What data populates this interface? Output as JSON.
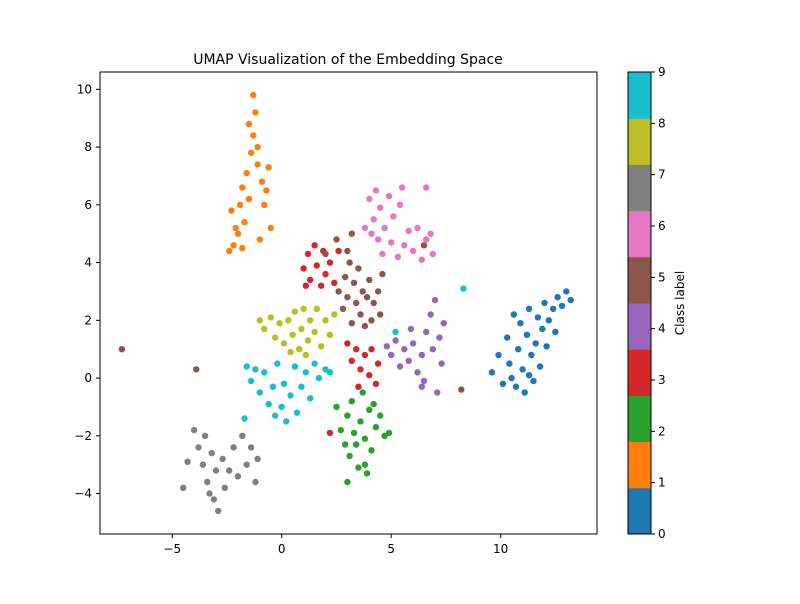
{
  "chart_data": {
    "type": "scatter",
    "title": "UMAP Visualization of the Embedding Space",
    "xlabel": "",
    "ylabel": "",
    "xlim": [
      -8.3,
      14.4
    ],
    "ylim": [
      -5.4,
      10.6
    ],
    "xticks": [
      -5,
      0,
      5,
      10
    ],
    "yticks": [
      -4,
      -2,
      0,
      2,
      4,
      6,
      8,
      10
    ],
    "grid": false,
    "colorbar": {
      "label": "Class label",
      "ticks": [
        0,
        1,
        2,
        3,
        4,
        5,
        6,
        7,
        8,
        9
      ],
      "colors": [
        "#1f77b4",
        "#ff7f0e",
        "#2ca02c",
        "#d62728",
        "#9467bd",
        "#8c564b",
        "#e377c2",
        "#7f7f7f",
        "#bcbd22",
        "#17becf"
      ]
    },
    "series": [
      {
        "label": 0,
        "points": [
          [
            9.6,
            0.2
          ],
          [
            9.9,
            0.8
          ],
          [
            10.1,
            -0.2
          ],
          [
            10.3,
            1.4
          ],
          [
            10.4,
            0.5
          ],
          [
            10.6,
            2.2
          ],
          [
            10.7,
            -0.3
          ],
          [
            10.8,
            1.0
          ],
          [
            10.9,
            1.9
          ],
          [
            11.0,
            0.3
          ],
          [
            11.1,
            -0.5
          ],
          [
            11.2,
            1.5
          ],
          [
            11.3,
            2.4
          ],
          [
            11.4,
            0.8
          ],
          [
            11.5,
            -0.1
          ],
          [
            11.6,
            1.2
          ],
          [
            11.7,
            2.1
          ],
          [
            11.8,
            0.4
          ],
          [
            11.9,
            1.7
          ],
          [
            12.0,
            2.6
          ],
          [
            12.1,
            1.1
          ],
          [
            12.2,
            2.0
          ],
          [
            12.4,
            2.4
          ],
          [
            12.5,
            1.6
          ],
          [
            12.6,
            2.8
          ],
          [
            12.8,
            2.5
          ],
          [
            13.0,
            3.0
          ],
          [
            13.2,
            2.7
          ],
          [
            10.5,
            0.0
          ],
          [
            11.3,
            0.1
          ]
        ]
      },
      {
        "label": 1,
        "points": [
          [
            -2.4,
            4.4
          ],
          [
            -2.2,
            4.6
          ],
          [
            -2.1,
            5.2
          ],
          [
            -2.3,
            5.8
          ],
          [
            -1.9,
            6.0
          ],
          [
            -2.0,
            5.0
          ],
          [
            -1.8,
            6.6
          ],
          [
            -1.7,
            5.4
          ],
          [
            -1.6,
            7.1
          ],
          [
            -1.5,
            6.2
          ],
          [
            -1.4,
            7.8
          ],
          [
            -1.3,
            8.4
          ],
          [
            -1.2,
            9.2
          ],
          [
            -1.3,
            9.8
          ],
          [
            -1.5,
            8.8
          ],
          [
            -1.1,
            7.4
          ],
          [
            -0.9,
            6.8
          ],
          [
            -0.8,
            6.0
          ],
          [
            -0.6,
            7.3
          ],
          [
            -0.5,
            5.2
          ],
          [
            -1.0,
            4.8
          ],
          [
            -1.8,
            4.5
          ],
          [
            -1.1,
            8.0
          ],
          [
            -0.7,
            6.5
          ]
        ]
      },
      {
        "label": 2,
        "points": [
          [
            2.5,
            -1.0
          ],
          [
            2.7,
            -1.8
          ],
          [
            2.9,
            -2.3
          ],
          [
            3.0,
            -1.3
          ],
          [
            3.1,
            -2.7
          ],
          [
            3.2,
            -0.8
          ],
          [
            3.3,
            -1.9
          ],
          [
            3.4,
            -2.3
          ],
          [
            3.5,
            -3.1
          ],
          [
            3.6,
            -1.5
          ],
          [
            3.7,
            -0.5
          ],
          [
            3.8,
            -2.1
          ],
          [
            3.9,
            -3.3
          ],
          [
            4.0,
            -1.1
          ],
          [
            4.1,
            -2.5
          ],
          [
            4.2,
            -0.9
          ],
          [
            4.3,
            -1.7
          ],
          [
            4.5,
            -1.3
          ],
          [
            4.7,
            -2.0
          ],
          [
            4.9,
            -1.9
          ],
          [
            3.0,
            -3.6
          ],
          [
            3.8,
            -3.0
          ]
        ]
      },
      {
        "label": 3,
        "points": [
          [
            1.0,
            3.8
          ],
          [
            1.2,
            4.3
          ],
          [
            1.3,
            3.4
          ],
          [
            1.5,
            4.6
          ],
          [
            1.6,
            3.9
          ],
          [
            1.8,
            3.2
          ],
          [
            1.9,
            4.4
          ],
          [
            2.0,
            3.6
          ],
          [
            2.2,
            4.0
          ],
          [
            2.4,
            3.3
          ],
          [
            2.6,
            4.4
          ],
          [
            1.1,
            3.2
          ],
          [
            3.0,
            1.2
          ],
          [
            3.2,
            0.6
          ],
          [
            3.4,
            1.0
          ],
          [
            3.6,
            0.3
          ],
          [
            3.8,
            0.8
          ],
          [
            4.0,
            0.1
          ],
          [
            4.1,
            1.0
          ],
          [
            4.3,
            -0.2
          ],
          [
            4.4,
            0.5
          ],
          [
            3.5,
            -0.3
          ],
          [
            2.2,
            -1.9
          ]
        ]
      },
      {
        "label": 4,
        "points": [
          [
            4.8,
            1.1
          ],
          [
            5.0,
            0.8
          ],
          [
            5.2,
            1.3
          ],
          [
            5.4,
            0.4
          ],
          [
            5.6,
            1.0
          ],
          [
            5.8,
            0.6
          ],
          [
            6.0,
            1.2
          ],
          [
            6.2,
            0.2
          ],
          [
            6.4,
            0.8
          ],
          [
            6.5,
            -0.1
          ],
          [
            6.6,
            1.6
          ],
          [
            6.8,
            2.2
          ],
          [
            6.9,
            1.0
          ],
          [
            7.0,
            2.7
          ],
          [
            7.2,
            1.4
          ],
          [
            7.3,
            0.5
          ],
          [
            7.1,
            -0.5
          ],
          [
            6.4,
            -0.3
          ],
          [
            7.4,
            1.9
          ],
          [
            5.9,
            1.7
          ]
        ]
      },
      {
        "label": 5,
        "points": [
          [
            2.6,
            3.0
          ],
          [
            2.8,
            2.4
          ],
          [
            2.9,
            3.5
          ],
          [
            3.0,
            2.8
          ],
          [
            3.1,
            4.0
          ],
          [
            3.2,
            1.9
          ],
          [
            3.3,
            3.3
          ],
          [
            3.4,
            2.6
          ],
          [
            3.5,
            3.8
          ],
          [
            3.6,
            2.2
          ],
          [
            3.7,
            3.0
          ],
          [
            3.8,
            1.8
          ],
          [
            3.9,
            2.8
          ],
          [
            4.0,
            3.4
          ],
          [
            4.1,
            2.0
          ],
          [
            4.2,
            2.6
          ],
          [
            4.4,
            3.0
          ],
          [
            4.5,
            2.2
          ],
          [
            4.6,
            3.6
          ],
          [
            3.0,
            4.4
          ],
          [
            2.5,
            4.8
          ],
          [
            2.0,
            4.3
          ],
          [
            3.2,
            5.0
          ],
          [
            6.5,
            4.6
          ],
          [
            8.2,
            -0.4
          ],
          [
            -7.3,
            1.0
          ],
          [
            -3.9,
            0.3
          ]
        ]
      },
      {
        "label": 6,
        "points": [
          [
            4.0,
            6.2
          ],
          [
            4.2,
            5.5
          ],
          [
            4.3,
            6.5
          ],
          [
            4.4,
            4.8
          ],
          [
            4.5,
            5.9
          ],
          [
            4.6,
            4.3
          ],
          [
            4.7,
            5.2
          ],
          [
            4.9,
            6.3
          ],
          [
            5.0,
            4.7
          ],
          [
            5.1,
            5.6
          ],
          [
            5.3,
            4.2
          ],
          [
            5.4,
            6.0
          ],
          [
            5.6,
            4.6
          ],
          [
            5.8,
            5.1
          ],
          [
            6.0,
            4.4
          ],
          [
            6.2,
            5.2
          ],
          [
            6.4,
            4.1
          ],
          [
            6.6,
            4.8
          ],
          [
            6.8,
            5.0
          ],
          [
            6.9,
            4.3
          ],
          [
            4.1,
            5.0
          ],
          [
            5.5,
            6.6
          ],
          [
            6.6,
            6.6
          ],
          [
            3.8,
            5.2
          ]
        ]
      },
      {
        "label": 7,
        "points": [
          [
            -4.0,
            -1.8
          ],
          [
            -3.8,
            -2.4
          ],
          [
            -3.6,
            -3.0
          ],
          [
            -3.5,
            -2.0
          ],
          [
            -3.4,
            -3.6
          ],
          [
            -3.2,
            -2.6
          ],
          [
            -3.1,
            -4.2
          ],
          [
            -3.0,
            -3.2
          ],
          [
            -2.9,
            -4.6
          ],
          [
            -2.7,
            -2.8
          ],
          [
            -2.6,
            -3.8
          ],
          [
            -2.4,
            -3.2
          ],
          [
            -2.2,
            -2.4
          ],
          [
            -2.0,
            -3.4
          ],
          [
            -1.8,
            -2.0
          ],
          [
            -1.6,
            -3.0
          ],
          [
            -1.4,
            -2.4
          ],
          [
            -1.2,
            -3.6
          ],
          [
            -1.1,
            -2.8
          ],
          [
            -4.3,
            -2.9
          ],
          [
            -4.5,
            -3.8
          ],
          [
            -3.3,
            -4.0
          ]
        ]
      },
      {
        "label": 8,
        "points": [
          [
            -1.0,
            2.0
          ],
          [
            -0.8,
            1.7
          ],
          [
            -0.5,
            2.1
          ],
          [
            -0.3,
            1.4
          ],
          [
            -0.1,
            1.9
          ],
          [
            0.1,
            1.2
          ],
          [
            0.3,
            2.0
          ],
          [
            0.5,
            1.5
          ],
          [
            0.6,
            2.3
          ],
          [
            0.8,
            1.0
          ],
          [
            0.9,
            1.7
          ],
          [
            1.0,
            2.4
          ],
          [
            1.2,
            1.3
          ],
          [
            1.3,
            2.0
          ],
          [
            1.5,
            1.6
          ],
          [
            1.6,
            2.4
          ],
          [
            1.8,
            1.1
          ],
          [
            2.0,
            2.0
          ],
          [
            2.2,
            1.5
          ],
          [
            2.4,
            2.2
          ],
          [
            0.4,
            0.9
          ],
          [
            1.1,
            0.8
          ]
        ]
      },
      {
        "label": 9,
        "points": [
          [
            -1.6,
            0.4
          ],
          [
            -1.4,
            -0.1
          ],
          [
            -1.2,
            0.3
          ],
          [
            -1.0,
            -0.5
          ],
          [
            -0.8,
            0.2
          ],
          [
            -0.6,
            -0.9
          ],
          [
            -0.4,
            -0.3
          ],
          [
            -0.2,
            0.5
          ],
          [
            0.0,
            -1.0
          ],
          [
            0.1,
            -0.2
          ],
          [
            0.2,
            -1.5
          ],
          [
            0.4,
            -0.6
          ],
          [
            0.6,
            0.4
          ],
          [
            0.7,
            -1.2
          ],
          [
            0.9,
            -0.3
          ],
          [
            1.1,
            0.2
          ],
          [
            1.3,
            -0.7
          ],
          [
            1.5,
            0.5
          ],
          [
            1.7,
            0.0
          ],
          [
            2.0,
            0.3
          ],
          [
            2.2,
            0.2
          ],
          [
            -0.3,
            -1.3
          ],
          [
            8.3,
            3.1
          ],
          [
            5.2,
            1.6
          ],
          [
            -1.7,
            -1.4
          ]
        ]
      }
    ]
  }
}
